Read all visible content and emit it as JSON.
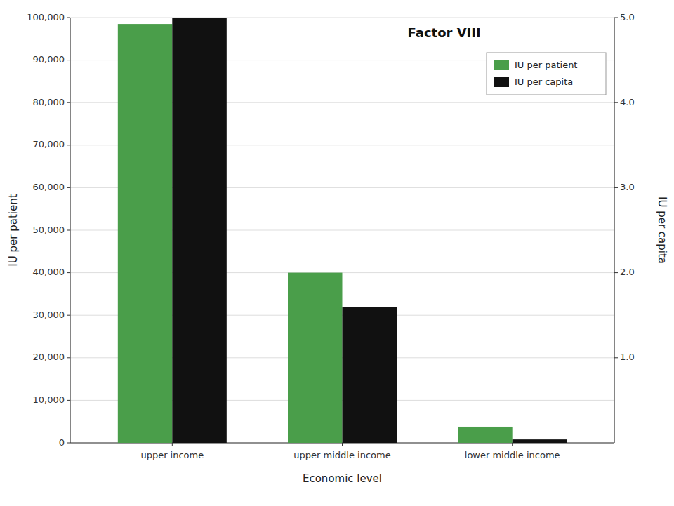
{
  "chart_data": {
    "type": "bar",
    "title": "Factor VIII",
    "xlabel": "Economic level",
    "ylabel": "IU per patient",
    "y2label": "IU per capita",
    "categories": [
      "upper income",
      "upper middle income",
      "lower middle income"
    ],
    "series": [
      {
        "name": "IU per patient",
        "color": "#4a9e4a",
        "values": [
          98500,
          40000,
          3800
        ]
      },
      {
        "name": "IU per capita",
        "color": "#111111",
        "axis": "y2",
        "values": [
          5.0,
          1.6,
          0.04
        ]
      }
    ],
    "ylim": [
      0,
      100000
    ],
    "yticks": [
      0,
      {
        "value": 10000,
        "label": "10,000"
      },
      {
        "value": 20000,
        "label": "20,000"
      },
      {
        "value": 30000,
        "label": "30,000"
      },
      {
        "value": 40000,
        "label": "40,000"
      },
      {
        "value": 50000,
        "label": "50,000"
      },
      {
        "value": 60000,
        "label": "60,000"
      },
      {
        "value": 70000,
        "label": "70,000"
      },
      {
        "value": 80000,
        "label": "80,000"
      },
      {
        "value": 90000,
        "label": "90,000"
      },
      {
        "value": 100000,
        "label": "100,000"
      }
    ],
    "y2lim": [
      0,
      5.0
    ],
    "y2ticks": [
      {
        "value": 1.0,
        "label": "1.0"
      },
      {
        "value": 2.0,
        "label": "2.0"
      },
      {
        "value": 3.0,
        "label": "3.0"
      },
      {
        "value": 4.0,
        "label": "4.0"
      },
      {
        "value": 5.0,
        "label": "5.0"
      }
    ],
    "grid": true,
    "legend": "upper right"
  }
}
